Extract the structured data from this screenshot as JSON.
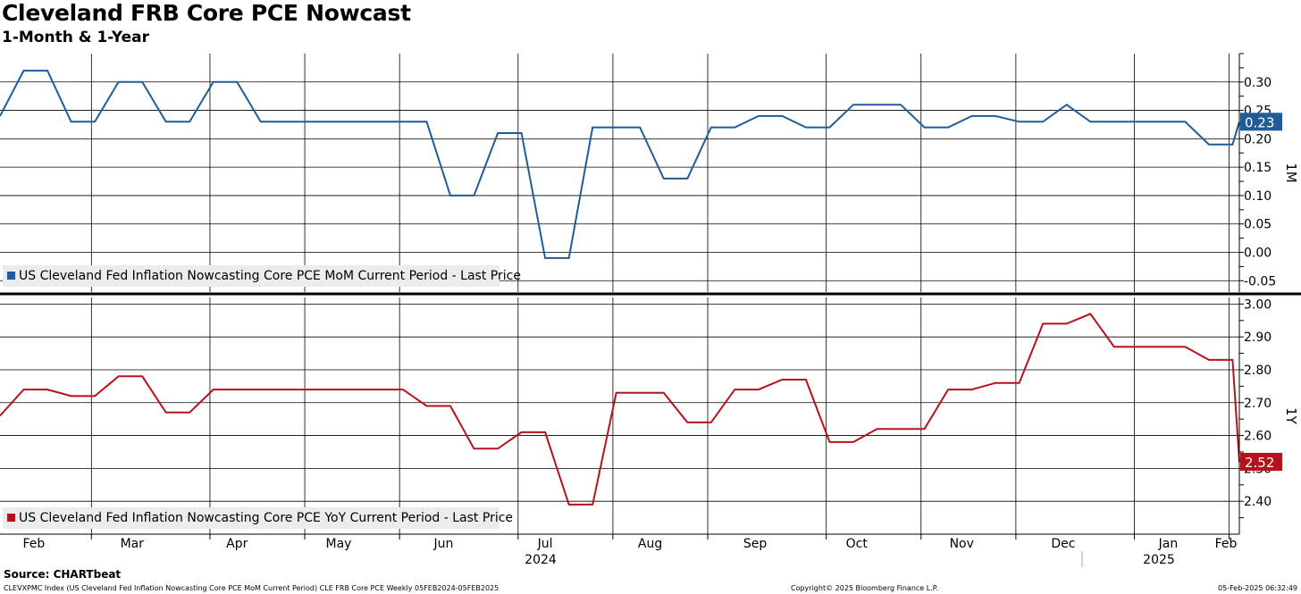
{
  "header": {
    "title": "Cleveland FRB Core PCE Nowcast",
    "subtitle": "1-Month & 1-Year"
  },
  "footer": {
    "source": "Source: CHARTbeat",
    "left_note": "CLEVXPMC Index (US Cleveland Fed Inflation Nowcasting Core PCE MoM Current Period) CLE FRB Core PCE  Weekly 05FEB2024-05FEB2025",
    "copyright": "Copyright© 2025 Bloomberg Finance L.P.",
    "timestamp": "05-Feb-2025 06:32:49"
  },
  "colors": {
    "mom": "#1f5c99",
    "yoy": "#b5121b"
  },
  "chart_data": [
    {
      "type": "line",
      "axis_label": "1M",
      "legend": "US Cleveland Fed Inflation Nowcasting Core PCE MoM Current Period - Last Price",
      "last_value_label": "0.23",
      "ylim": [
        -0.07,
        0.35
      ],
      "yticks": [
        -0.05,
        0.0,
        0.05,
        0.1,
        0.15,
        0.2,
        0.25,
        0.3
      ],
      "ytick_labels": [
        "-0.05",
        "0.00",
        "0.05",
        "0.10",
        "0.15",
        "0.20",
        "0.25",
        "0.30"
      ],
      "grid": true,
      "series": [
        {
          "values": [
            0.24,
            0.32,
            0.32,
            0.23,
            0.23,
            0.3,
            0.3,
            0.23,
            0.23,
            0.3,
            0.3,
            0.23,
            0.23,
            0.23,
            0.23,
            0.23,
            0.23,
            0.23,
            0.23,
            0.1,
            0.1,
            0.21,
            0.21,
            -0.01,
            -0.01,
            0.22,
            0.22,
            0.22,
            0.13,
            0.13,
            0.22,
            0.22,
            0.24,
            0.24,
            0.22,
            0.22,
            0.26,
            0.26,
            0.26,
            0.22,
            0.22,
            0.24,
            0.24,
            0.23,
            0.23,
            0.26,
            0.23,
            0.23,
            0.23,
            0.23,
            0.23,
            0.19,
            0.19,
            0.23,
            0.23
          ]
        }
      ]
    },
    {
      "type": "line",
      "axis_label": "1Y",
      "legend": "US Cleveland Fed Inflation Nowcasting Core PCE YoY Current Period - Last Price",
      "last_value_label": "2.52",
      "ylim": [
        2.3,
        3.02
      ],
      "yticks": [
        2.4,
        2.5,
        2.6,
        2.7,
        2.8,
        2.9,
        3.0
      ],
      "ytick_labels": [
        "2.40",
        "2.50",
        "2.60",
        "2.70",
        "2.80",
        "2.90",
        "3.00"
      ],
      "grid": true,
      "series": [
        {
          "values": [
            2.66,
            2.74,
            2.74,
            2.72,
            2.72,
            2.78,
            2.78,
            2.67,
            2.67,
            2.74,
            2.74,
            2.74,
            2.74,
            2.74,
            2.74,
            2.74,
            2.74,
            2.74,
            2.69,
            2.69,
            2.56,
            2.56,
            2.61,
            2.61,
            2.39,
            2.39,
            2.73,
            2.73,
            2.73,
            2.64,
            2.64,
            2.74,
            2.74,
            2.77,
            2.77,
            2.58,
            2.58,
            2.62,
            2.62,
            2.62,
            2.74,
            2.74,
            2.76,
            2.76,
            2.94,
            2.94,
            2.97,
            2.87,
            2.87,
            2.87,
            2.87,
            2.83,
            2.83,
            2.52,
            2.52
          ]
        }
      ]
    }
  ],
  "x_axis": {
    "start_date": "2024-02-05",
    "end_date": "2025-02-05",
    "month_labels": [
      "Feb",
      "Mar",
      "Apr",
      "May",
      "Jun",
      "Jul",
      "Aug",
      "Sep",
      "Oct",
      "Nov",
      "Dec",
      "Jan",
      "Feb"
    ],
    "year_labels": [
      "2024",
      "2025"
    ]
  }
}
